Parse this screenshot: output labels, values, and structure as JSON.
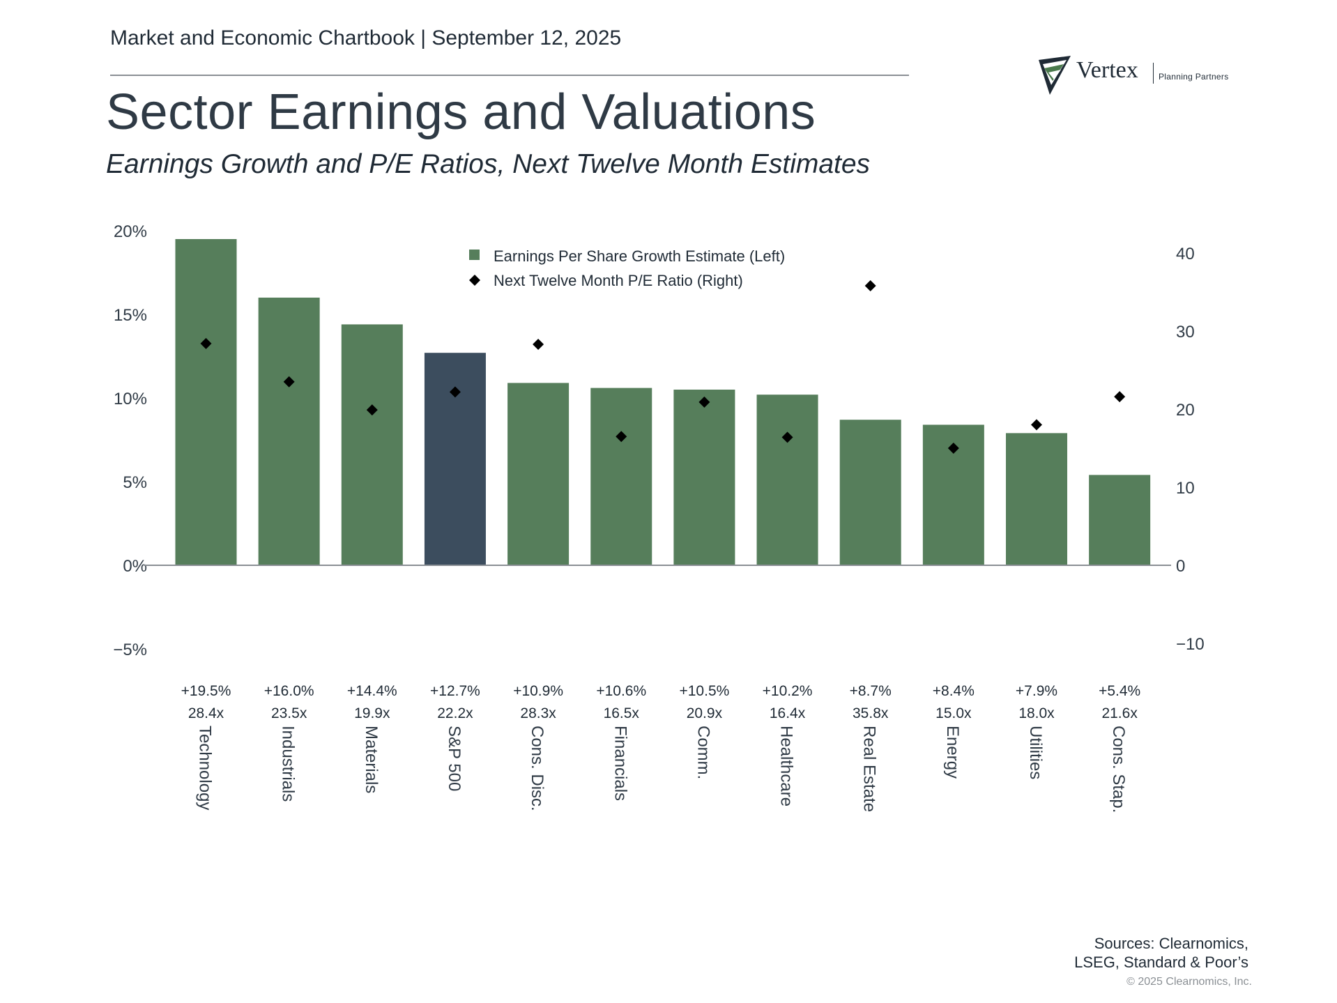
{
  "header": {
    "chartbook": "Market and Economic Chartbook | September 12, 2025",
    "title": "Sector Earnings and Valuations",
    "subtitle": "Earnings Growth and P/E Ratios, Next Twelve Month Estimates"
  },
  "logo": {
    "name": "Vertex",
    "tagline": "Planning Partners"
  },
  "footer": {
    "sources_line1": "Sources: Clearnomics,",
    "sources_line2": "LSEG, Standard & Poor’s",
    "copyright": "© 2025 Clearnomics, Inc."
  },
  "colors": {
    "bar": "#567e5b",
    "benchmark_bar": "#3c4d5e",
    "marker": "#000000",
    "axis": "#8a8f94",
    "text": "#2f3a45"
  },
  "chart_data": {
    "type": "bar",
    "categories": [
      "Technology",
      "Industrials",
      "Materials",
      "S&P 500",
      "Cons. Disc.",
      "Financials",
      "Comm.",
      "Healthcare",
      "Real Estate",
      "Energy",
      "Utilities",
      "Cons. Stap."
    ],
    "highlight_category": "S&P 500",
    "series": [
      {
        "name": "Earnings Per Share Growth Estimate (Left)",
        "type": "bar",
        "axis": "left",
        "values": [
          19.5,
          16.0,
          14.4,
          12.7,
          10.9,
          10.6,
          10.5,
          10.2,
          8.7,
          8.4,
          7.9,
          5.4
        ]
      },
      {
        "name": "Next Twelve Month P/E Ratio (Right)",
        "type": "scatter",
        "marker": "diamond",
        "axis": "right",
        "values": [
          28.4,
          23.5,
          19.9,
          22.2,
          28.3,
          16.5,
          20.9,
          16.4,
          35.8,
          15.0,
          18.0,
          21.6
        ]
      }
    ],
    "data_labels_growth": [
      "+19.5%",
      "+16.0%",
      "+14.4%",
      "+12.7%",
      "+10.9%",
      "+10.6%",
      "+10.5%",
      "+10.2%",
      "+8.7%",
      "+8.4%",
      "+7.9%",
      "+5.4%"
    ],
    "data_labels_pe": [
      "28.4x",
      "23.5x",
      "19.9x",
      "22.2x",
      "28.3x",
      "16.5x",
      "20.9x",
      "16.4x",
      "35.8x",
      "15.0x",
      "18.0x",
      "21.6x"
    ],
    "left_axis": {
      "ylim": [
        -5,
        20
      ],
      "ticks": [
        20,
        15,
        10,
        5,
        0,
        -5
      ],
      "tick_labels": [
        "20%",
        "15%",
        "10%",
        "5%",
        "0%",
        "−5%"
      ]
    },
    "right_axis": {
      "ylim": [
        -10,
        40
      ],
      "ticks": [
        40,
        30,
        20,
        10,
        0,
        -10
      ],
      "tick_labels": [
        "40",
        "30",
        "20",
        "10",
        "0",
        "−10"
      ]
    },
    "legend": "top-center",
    "grid": false
  }
}
